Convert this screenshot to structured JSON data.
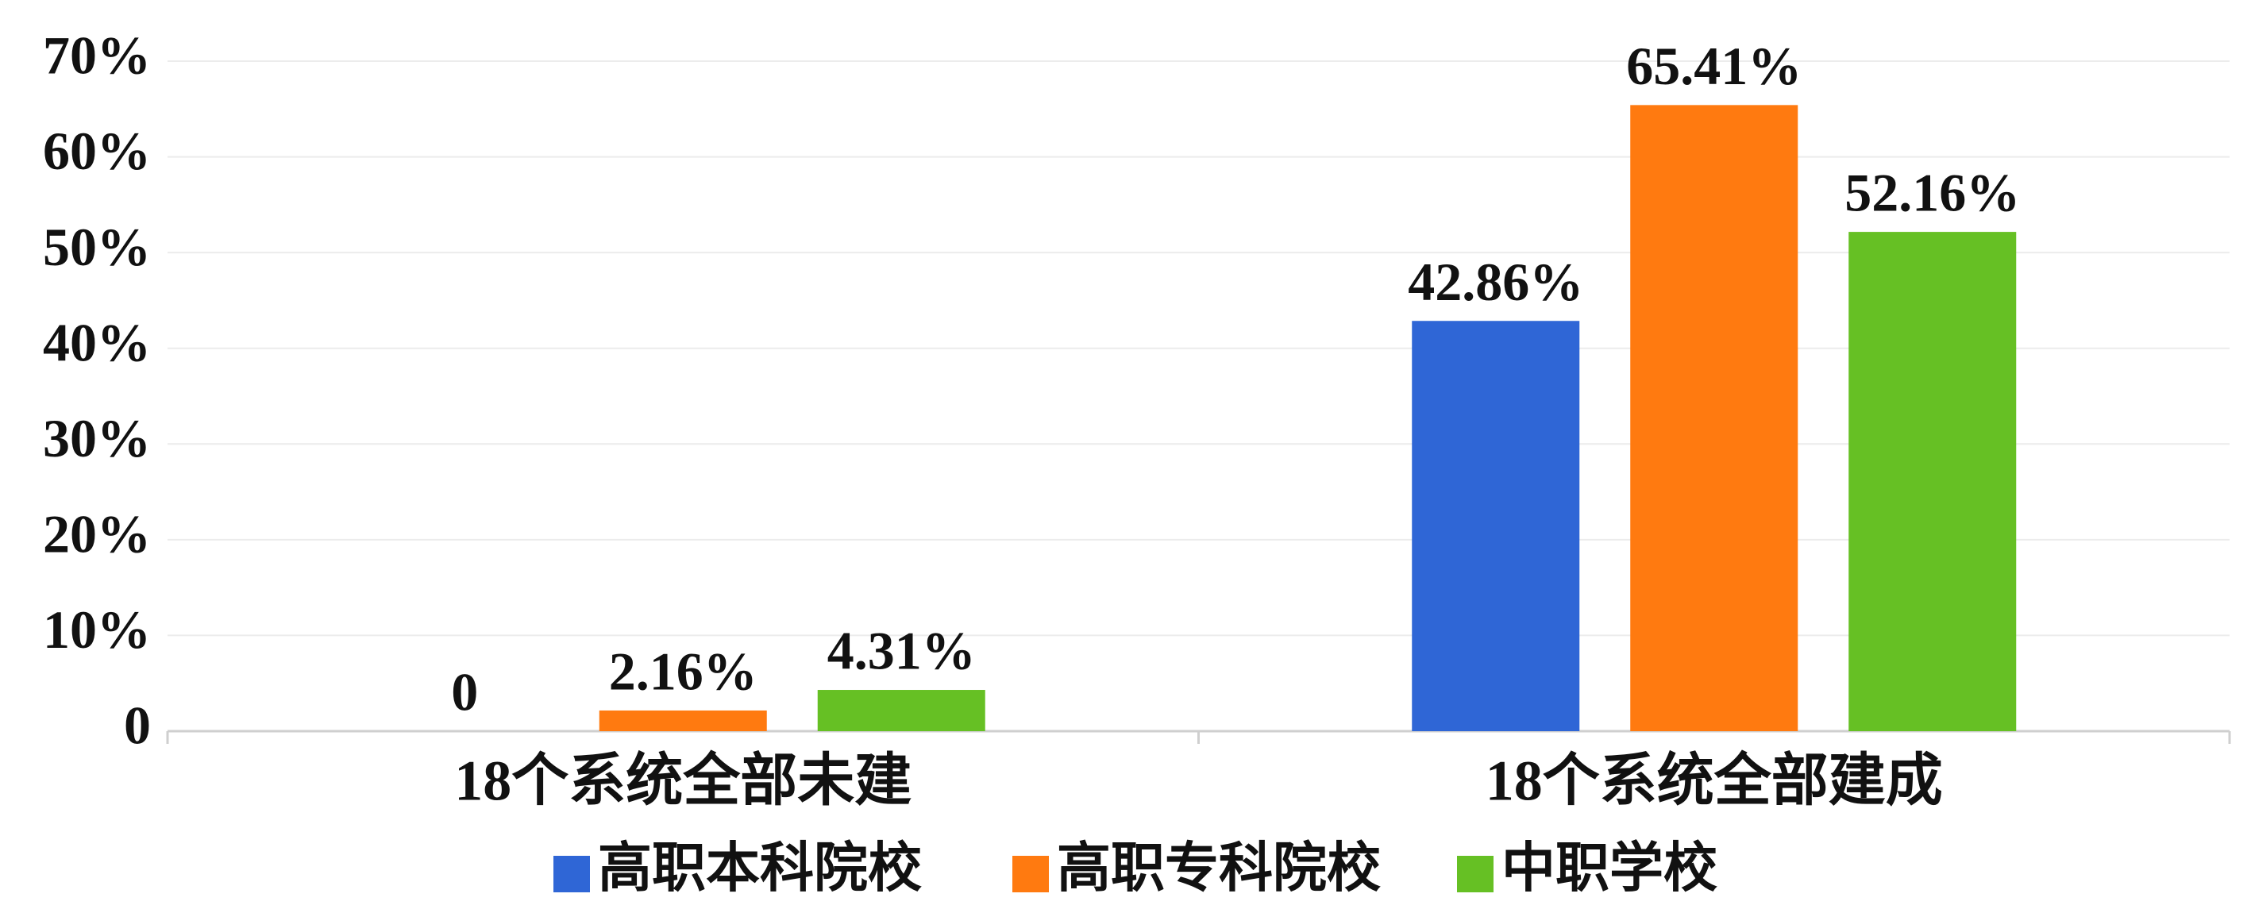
{
  "chart_data": {
    "type": "bar",
    "categories": [
      "18个系统全部未建",
      "18个系统全部建成"
    ],
    "series": [
      {
        "name": "高职本科院校",
        "color": "#2f66d6",
        "values": [
          0,
          42.86
        ],
        "value_labels": [
          "0",
          "42.86%"
        ]
      },
      {
        "name": "高职专科院校",
        "color": "#ff7a10",
        "values": [
          2.16,
          65.41
        ],
        "value_labels": [
          "2.16%",
          "65.41%"
        ]
      },
      {
        "name": "中职学校",
        "color": "#66c024",
        "values": [
          4.31,
          52.16
        ],
        "value_labels": [
          "4.31%",
          "52.16%"
        ]
      }
    ],
    "ylim": [
      0,
      70
    ],
    "yticks": [
      0,
      {
        "value": 10,
        "label": "10%"
      },
      {
        "value": 20,
        "label": "20%"
      },
      {
        "value": 30,
        "label": "30%"
      },
      {
        "value": 40,
        "label": "40%"
      },
      {
        "value": 50,
        "label": "50%"
      },
      {
        "value": 60,
        "label": "60%"
      },
      {
        "value": 70,
        "label": "70%"
      }
    ],
    "grid": true,
    "legend": "bottom"
  }
}
